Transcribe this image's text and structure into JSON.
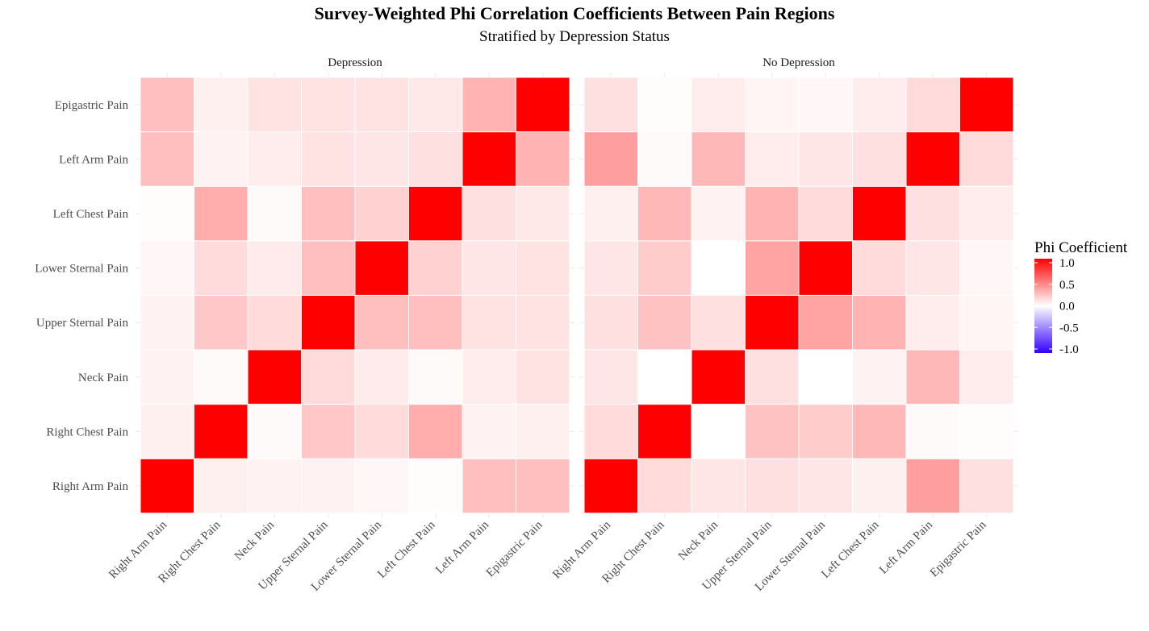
{
  "chart_data": {
    "type": "heatmap",
    "title": "Survey-Weighted Phi Correlation Coefficients Between Pain Regions",
    "subtitle": "Stratified by Depression Status",
    "categories": [
      "Right Arm Pain",
      "Right Chest Pain",
      "Neck Pain",
      "Upper Sternal Pain",
      "Lower Sternal Pain",
      "Left Chest Pain",
      "Left Arm Pain",
      "Epigastric Pain"
    ],
    "color_scale": {
      "low": "#3300ff",
      "mid": "#ffffff",
      "high": "#ff0000",
      "limits": [
        -1,
        1
      ]
    },
    "legend": {
      "title": "Phi Coefficient",
      "ticks": [
        "1.0",
        "0.5",
        "0.0",
        "-0.5",
        "-1.0"
      ],
      "tick_values": [
        1.0,
        0.5,
        0.0,
        -0.5,
        -1.0
      ],
      "placement": "right"
    },
    "panels": [
      {
        "name": "Depression",
        "values": [
          [
            1.0,
            0.06,
            0.05,
            0.05,
            0.03,
            0.01,
            0.25,
            0.25
          ],
          [
            0.06,
            1.0,
            0.02,
            0.22,
            0.14,
            0.32,
            0.05,
            0.06
          ],
          [
            0.05,
            0.02,
            1.0,
            0.14,
            0.08,
            0.02,
            0.07,
            0.11
          ],
          [
            0.05,
            0.22,
            0.14,
            1.0,
            0.25,
            0.25,
            0.11,
            0.11
          ],
          [
            0.03,
            0.14,
            0.08,
            0.25,
            1.0,
            0.18,
            0.1,
            0.11
          ],
          [
            0.01,
            0.32,
            0.02,
            0.25,
            0.18,
            1.0,
            0.12,
            0.09
          ],
          [
            0.25,
            0.05,
            0.07,
            0.11,
            0.1,
            0.12,
            1.0,
            0.3
          ],
          [
            0.25,
            0.06,
            0.11,
            0.11,
            0.11,
            0.09,
            0.3,
            1.0
          ]
        ]
      },
      {
        "name": "No Depression",
        "values": [
          [
            1.0,
            0.14,
            0.1,
            0.12,
            0.1,
            0.06,
            0.38,
            0.12
          ],
          [
            0.14,
            1.0,
            0.0,
            0.24,
            0.2,
            0.28,
            0.02,
            0.01
          ],
          [
            0.1,
            0.0,
            1.0,
            0.12,
            0.0,
            0.05,
            0.28,
            0.07
          ],
          [
            0.12,
            0.24,
            0.12,
            1.0,
            0.36,
            0.3,
            0.07,
            0.04
          ],
          [
            0.1,
            0.2,
            0.0,
            0.36,
            1.0,
            0.14,
            0.1,
            0.03
          ],
          [
            0.06,
            0.28,
            0.05,
            0.3,
            0.14,
            1.0,
            0.12,
            0.07
          ],
          [
            0.38,
            0.02,
            0.28,
            0.07,
            0.1,
            0.12,
            1.0,
            0.14
          ],
          [
            0.12,
            0.01,
            0.07,
            0.04,
            0.03,
            0.07,
            0.14,
            1.0
          ]
        ]
      }
    ]
  }
}
